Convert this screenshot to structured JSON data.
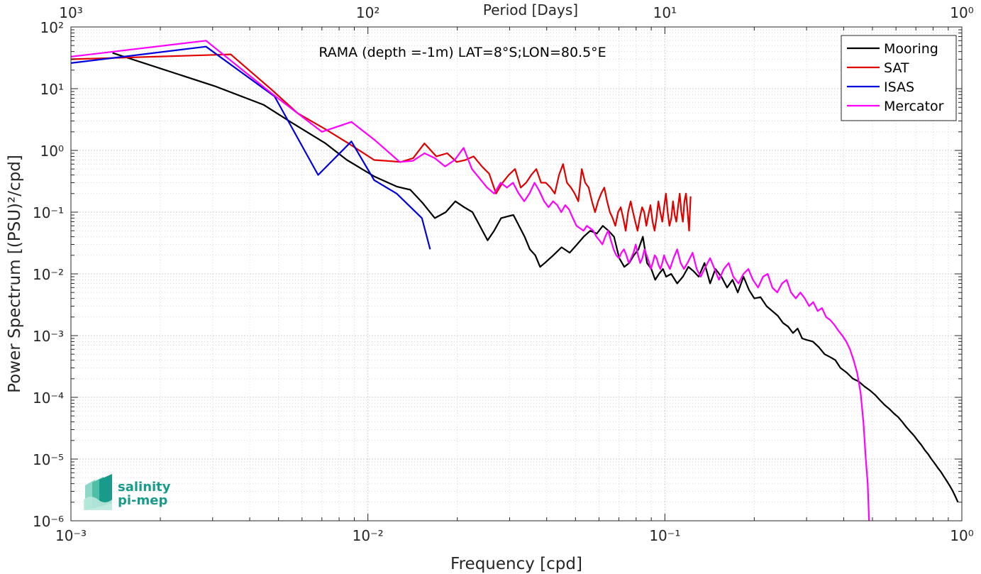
{
  "chart_data": {
    "type": "line",
    "title": "RAMA (depth =-1m) LAT=8°S;LON=80.5°E",
    "xlabel": "Frequency [cpd]",
    "ylabel": "Power Spectrum [(PSU)²/cpd]",
    "top_xlabel": "Period [Days]",
    "x_scale": "log",
    "y_scale": "log",
    "xlim": [
      0.001,
      1
    ],
    "ylim": [
      1e-06,
      100
    ],
    "grid": true,
    "legend_position": "top-right",
    "x_tick_labels": [
      "10⁻³",
      "10⁻²",
      "10⁻¹",
      "10⁰"
    ],
    "x_tick_values": [
      0.001,
      0.01,
      0.1,
      1
    ],
    "top_tick_labels": [
      "10³",
      "10²",
      "10¹",
      "10⁰"
    ],
    "y_tick_labels": [
      "10⁻⁶",
      "10⁻⁵",
      "10⁻⁴",
      "10⁻³",
      "10⁻²",
      "10⁻¹",
      "10⁰",
      "10¹",
      "10²"
    ],
    "y_tick_values": [
      1e-06,
      1e-05,
      0.0001,
      0.001,
      0.01,
      0.1,
      1,
      10,
      100
    ],
    "series": [
      {
        "name": "Mooring",
        "color": "#000000",
        "x": [
          0.00138,
          0.00305,
          0.00445,
          0.00555,
          0.0072,
          0.0085,
          0.0105,
          0.0125,
          0.0139,
          0.0153,
          0.0168,
          0.0183,
          0.0197,
          0.0211,
          0.0225,
          0.0253,
          0.0266,
          0.0281,
          0.0295,
          0.0309,
          0.0337,
          0.0351,
          0.0366,
          0.038,
          0.0394,
          0.0421,
          0.0449,
          0.0478,
          0.0506,
          0.0533,
          0.0561,
          0.059,
          0.0618,
          0.0646,
          0.0674,
          0.0702,
          0.073,
          0.0758,
          0.0786,
          0.0815,
          0.0843,
          0.0871,
          0.09,
          0.0928,
          0.0955,
          0.0985,
          0.101,
          0.105,
          0.11,
          0.115,
          0.12,
          0.125,
          0.13,
          0.136,
          0.142,
          0.148,
          0.155,
          0.162,
          0.169,
          0.176,
          0.184,
          0.192,
          0.2,
          0.21,
          0.22,
          0.23,
          0.24,
          0.25,
          0.26,
          0.27,
          0.28,
          0.29,
          0.3,
          0.315,
          0.33,
          0.345,
          0.36,
          0.375,
          0.39,
          0.41,
          0.43,
          0.45,
          0.47,
          0.49,
          0.51,
          0.53,
          0.55,
          0.57,
          0.59,
          0.61,
          0.63,
          0.65,
          0.67,
          0.69,
          0.71,
          0.73,
          0.75,
          0.77,
          0.79,
          0.81,
          0.83,
          0.85,
          0.87,
          0.89,
          0.91,
          0.93,
          0.95,
          0.97
        ],
        "y": [
          38,
          11,
          5.5,
          2.8,
          1.3,
          0.7,
          0.38,
          0.26,
          0.23,
          0.14,
          0.08,
          0.1,
          0.15,
          0.12,
          0.1,
          0.035,
          0.05,
          0.08,
          0.085,
          0.09,
          0.04,
          0.025,
          0.02,
          0.013,
          0.015,
          0.02,
          0.027,
          0.022,
          0.03,
          0.04,
          0.05,
          0.045,
          0.06,
          0.05,
          0.04,
          0.018,
          0.013,
          0.015,
          0.02,
          0.025,
          0.04,
          0.015,
          0.012,
          0.008,
          0.01,
          0.012,
          0.009,
          0.01,
          0.007,
          0.009,
          0.013,
          0.011,
          0.009,
          0.015,
          0.007,
          0.012,
          0.009,
          0.006,
          0.008,
          0.005,
          0.009,
          0.0055,
          0.004,
          0.0042,
          0.003,
          0.0025,
          0.0021,
          0.0016,
          0.0014,
          0.0011,
          0.0013,
          0.0009,
          0.00085,
          0.0008,
          0.00065,
          0.0005,
          0.00045,
          0.0004,
          0.0003,
          0.00025,
          0.0002,
          0.00018,
          0.00015,
          0.00013,
          0.00011,
          9e-05,
          7.5e-05,
          6.5e-05,
          5.5e-05,
          4.8e-05,
          4e-05,
          3.3e-05,
          2.8e-05,
          2.4e-05,
          2e-05,
          1.7e-05,
          1.4e-05,
          1.2e-05,
          1e-05,
          8.5e-06,
          7.2e-06,
          6.2e-06,
          5.2e-06,
          4.4e-06,
          3.7e-06,
          3.1e-06,
          2.5e-06,
          2e-06
        ]
      },
      {
        "name": "SAT",
        "color": "#e00000",
        "x": [
          0.001,
          0.00285,
          0.00345,
          0.0047,
          0.0058,
          0.0072,
          0.0086,
          0.0105,
          0.0115,
          0.0129,
          0.0142,
          0.0155,
          0.017,
          0.0185,
          0.0199,
          0.0213,
          0.0227,
          0.0242,
          0.0256,
          0.027,
          0.0284,
          0.0298,
          0.0313,
          0.0327,
          0.0341,
          0.0355,
          0.0369,
          0.0383,
          0.0397,
          0.0412,
          0.0426,
          0.044,
          0.0454,
          0.0468,
          0.0483,
          0.0497,
          0.0511,
          0.0525,
          0.0539,
          0.0554,
          0.0568,
          0.0582,
          0.0596,
          0.061,
          0.0625,
          0.0639,
          0.0653,
          0.0667,
          0.0681,
          0.0696,
          0.071,
          0.0724,
          0.0738,
          0.0752,
          0.0767,
          0.0781,
          0.0795,
          0.0809,
          0.0823,
          0.0838,
          0.0852,
          0.0866,
          0.088,
          0.0894,
          0.0909,
          0.0923,
          0.0937,
          0.0951,
          0.0965,
          0.098,
          0.0994,
          0.1008,
          0.1022,
          0.1036,
          0.1051,
          0.1065,
          0.1079,
          0.1093,
          0.1107,
          0.1122,
          0.1136,
          0.115,
          0.1164,
          0.1178,
          0.1193,
          0.1207,
          0.1221
        ],
        "y": [
          30,
          35,
          36,
          10,
          4,
          2.2,
          1.3,
          0.7,
          0.68,
          0.65,
          0.75,
          1.3,
          0.8,
          0.9,
          0.65,
          0.7,
          0.8,
          0.55,
          0.42,
          0.2,
          0.3,
          0.4,
          0.5,
          0.25,
          0.3,
          0.4,
          0.5,
          0.3,
          0.3,
          0.25,
          0.2,
          0.4,
          0.6,
          0.3,
          0.25,
          0.2,
          0.15,
          0.5,
          0.3,
          0.25,
          0.15,
          0.1,
          0.15,
          0.2,
          0.25,
          0.15,
          0.1,
          0.08,
          0.06,
          0.1,
          0.12,
          0.08,
          0.05,
          0.1,
          0.15,
          0.1,
          0.07,
          0.05,
          0.08,
          0.12,
          0.1,
          0.06,
          0.09,
          0.13,
          0.07,
          0.05,
          0.08,
          0.15,
          0.1,
          0.07,
          0.12,
          0.2,
          0.1,
          0.06,
          0.08,
          0.15,
          0.09,
          0.07,
          0.12,
          0.2,
          0.1,
          0.07,
          0.15,
          0.2,
          0.1,
          0.05,
          0.18
        ]
      },
      {
        "name": "ISAS",
        "color": "#0000dd",
        "x": [
          0.001,
          0.00285,
          0.00485,
          0.0068,
          0.0088,
          0.0105,
          0.0125,
          0.0152,
          0.0162
        ],
        "y": [
          26,
          48,
          7.5,
          0.4,
          1.4,
          0.33,
          0.2,
          0.08,
          0.025
        ]
      },
      {
        "name": "Mercator",
        "color": "#ff00ff",
        "x": [
          0.001,
          0.00285,
          0.0048,
          0.007,
          0.0088,
          0.0105,
          0.0128,
          0.0142,
          0.0155,
          0.0168,
          0.0182,
          0.0196,
          0.021,
          0.0224,
          0.0238,
          0.0252,
          0.0266,
          0.028,
          0.0294,
          0.0308,
          0.0322,
          0.0336,
          0.035,
          0.0364,
          0.0378,
          0.0392,
          0.0406,
          0.042,
          0.0434,
          0.0448,
          0.0462,
          0.0476,
          0.049,
          0.0504,
          0.0518,
          0.0532,
          0.0546,
          0.056,
          0.0574,
          0.0588,
          0.0602,
          0.0616,
          0.063,
          0.0644,
          0.0658,
          0.0672,
          0.0686,
          0.07,
          0.0714,
          0.0728,
          0.0742,
          0.0756,
          0.077,
          0.0784,
          0.0798,
          0.0812,
          0.0826,
          0.084,
          0.0854,
          0.0868,
          0.0882,
          0.0896,
          0.091,
          0.0924,
          0.0938,
          0.0952,
          0.0966,
          0.098,
          0.0994,
          0.101,
          0.104,
          0.107,
          0.11,
          0.113,
          0.116,
          0.12,
          0.124,
          0.128,
          0.132,
          0.137,
          0.142,
          0.147,
          0.152,
          0.158,
          0.164,
          0.17,
          0.177,
          0.184,
          0.191,
          0.198,
          0.206,
          0.214,
          0.222,
          0.23,
          0.239,
          0.248,
          0.257,
          0.266,
          0.276,
          0.286,
          0.296,
          0.306,
          0.316,
          0.327,
          0.338,
          0.349,
          0.36,
          0.372,
          0.384,
          0.396,
          0.408,
          0.42,
          0.432,
          0.444,
          0.456,
          0.466,
          0.475,
          0.482,
          0.487
        ],
        "y": [
          33,
          60,
          8,
          2,
          2.9,
          1.5,
          0.65,
          0.68,
          0.9,
          0.75,
          0.55,
          0.7,
          1.1,
          0.5,
          0.35,
          0.25,
          0.2,
          0.3,
          0.25,
          0.3,
          0.2,
          0.15,
          0.2,
          0.3,
          0.22,
          0.15,
          0.12,
          0.15,
          0.13,
          0.1,
          0.13,
          0.11,
          0.08,
          0.06,
          0.055,
          0.05,
          0.06,
          0.055,
          0.05,
          0.04,
          0.035,
          0.03,
          0.04,
          0.05,
          0.035,
          0.025,
          0.02,
          0.018,
          0.022,
          0.025,
          0.02,
          0.015,
          0.018,
          0.022,
          0.03,
          0.02,
          0.015,
          0.018,
          0.025,
          0.02,
          0.016,
          0.012,
          0.015,
          0.02,
          0.018,
          0.014,
          0.012,
          0.015,
          0.02,
          0.016,
          0.012,
          0.018,
          0.025,
          0.015,
          0.012,
          0.016,
          0.022,
          0.012,
          0.009,
          0.013,
          0.018,
          0.012,
          0.008,
          0.012,
          0.015,
          0.009,
          0.007,
          0.01,
          0.012,
          0.008,
          0.006,
          0.009,
          0.01,
          0.006,
          0.005,
          0.007,
          0.008,
          0.005,
          0.004,
          0.005,
          0.004,
          0.003,
          0.0035,
          0.0025,
          0.0028,
          0.002,
          0.0018,
          0.0015,
          0.0012,
          0.001,
          0.0008,
          0.0006,
          0.0004,
          0.00025,
          0.00012,
          4e-05,
          1e-05,
          4e-06,
          1e-06
        ]
      }
    ]
  },
  "logo": {
    "line1": "salinity",
    "line2": "pi-mep"
  }
}
